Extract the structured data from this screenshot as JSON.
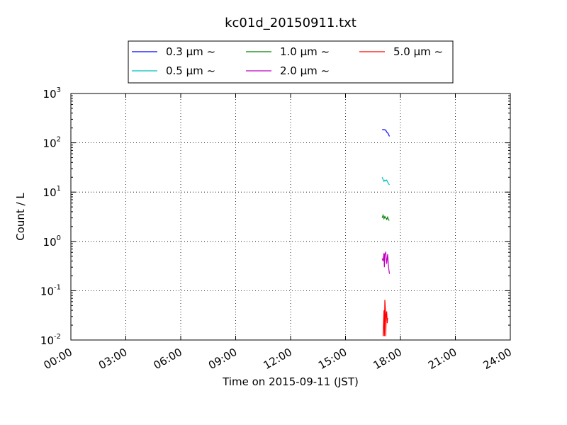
{
  "chart_data": {
    "type": "line",
    "title": "kc01d_20150911.txt",
    "xlabel": "Time on 2015-09-11 (JST)",
    "ylabel": "Count / L",
    "x_ticks": [
      "00:00",
      "03:00",
      "06:00",
      "09:00",
      "12:00",
      "15:00",
      "18:00",
      "21:00",
      "24:00"
    ],
    "xlim_hours": [
      0,
      24
    ],
    "y_scale": "log",
    "ylim": [
      0.01,
      1000
    ],
    "y_ticks": [
      {
        "base": "10",
        "exp": "-2"
      },
      {
        "base": "10",
        "exp": "-1"
      },
      {
        "base": "10",
        "exp": "0"
      },
      {
        "base": "10",
        "exp": "1"
      },
      {
        "base": "10",
        "exp": "2"
      },
      {
        "base": "10",
        "exp": "3"
      }
    ],
    "grid": true,
    "legend_position": "top",
    "series": [
      {
        "name": "0.3 μm ~",
        "color": "#0000ff",
        "x": [
          17.0,
          17.1,
          17.2,
          17.25,
          17.3,
          17.35,
          17.4
        ],
        "y": [
          185,
          185,
          180,
          165,
          160,
          148,
          135
        ]
      },
      {
        "name": "0.5 μm ~",
        "color": "#00bfbf",
        "x": [
          17.0,
          17.05,
          17.1,
          17.15,
          17.2,
          17.25,
          17.3,
          17.35,
          17.4
        ],
        "y": [
          20,
          18,
          16.5,
          17.5,
          16.8,
          17.5,
          16,
          14.8,
          14
        ]
      },
      {
        "name": "1.0 μm ~",
        "color": "#008000",
        "x": [
          17.0,
          17.05,
          17.1,
          17.15,
          17.2,
          17.25,
          17.3,
          17.35,
          17.4
        ],
        "y": [
          3.0,
          3.4,
          2.9,
          3.2,
          3.0,
          2.8,
          3.1,
          2.7,
          2.7
        ]
      },
      {
        "name": "2.0 μm ~",
        "color": "#bf00bf",
        "x": [
          17.0,
          17.05,
          17.1,
          17.12,
          17.15,
          17.2,
          17.25,
          17.3,
          17.35,
          17.4
        ],
        "y": [
          0.45,
          0.4,
          0.58,
          0.3,
          0.55,
          0.6,
          0.35,
          0.55,
          0.3,
          0.22
        ]
      },
      {
        "name": "5.0 μm ~",
        "color": "#ff0000",
        "x": [
          17.05,
          17.1,
          17.12,
          17.15,
          17.18,
          17.2,
          17.22,
          17.25,
          17.28,
          17.3
        ],
        "y": [
          0.012,
          0.04,
          0.012,
          0.065,
          0.04,
          0.012,
          0.03,
          0.038,
          0.022,
          0.028
        ]
      }
    ]
  }
}
